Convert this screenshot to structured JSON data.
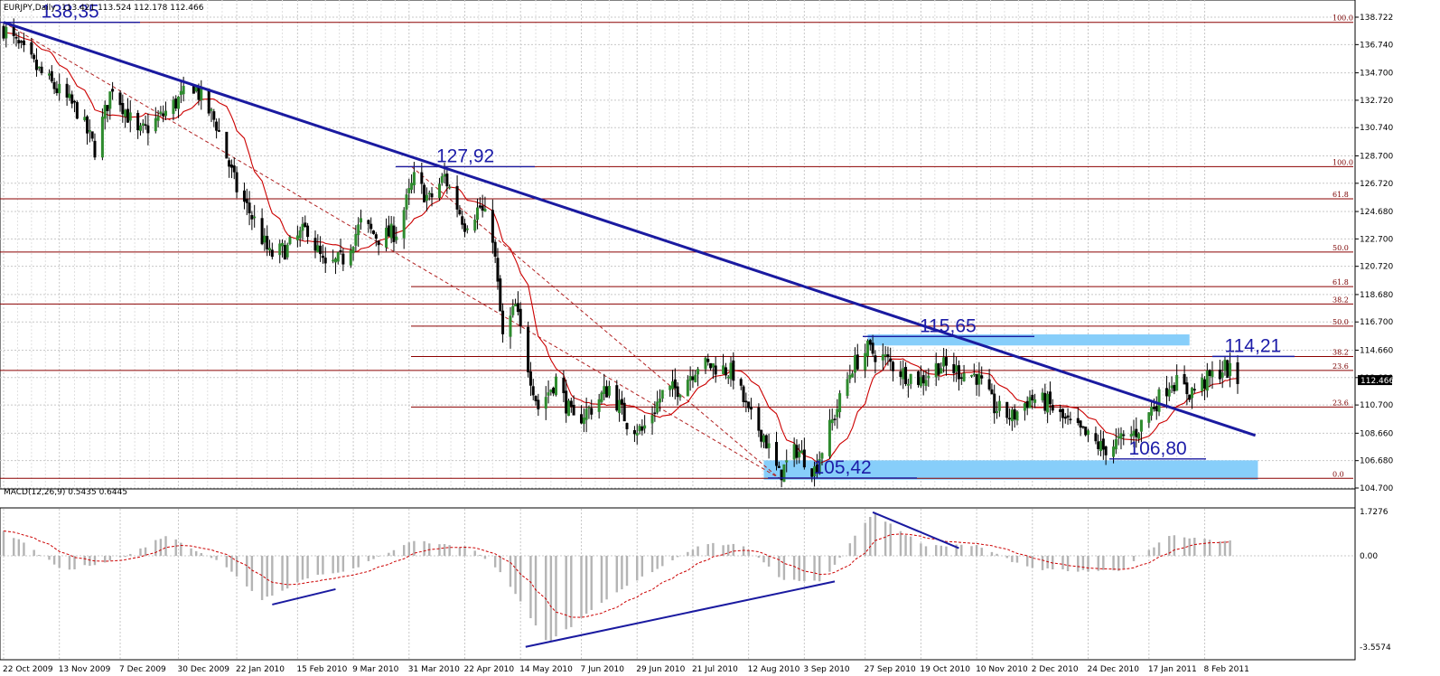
{
  "chart_data": {
    "type": "candlestick",
    "symbol_label": "EURJPY,Daily",
    "ohlc_label": "113.421 113.524 112.178 112.466",
    "current_price": "112.466",
    "price_axis": {
      "min": 104.7,
      "max": 138.722,
      "ticks": [
        "138.722",
        "136.740",
        "134.700",
        "132.720",
        "130.740",
        "128.700",
        "126.720",
        "124.680",
        "122.700",
        "120.720",
        "118.680",
        "116.700",
        "114.660",
        "112.680",
        "110.700",
        "108.660",
        "106.680",
        "104.700"
      ]
    },
    "date_ticks": [
      "22 Oct 2009",
      "13 Nov 2009",
      "7 Dec 2009",
      "30 Dec 2009",
      "22 Jan 2010",
      "15 Feb 2010",
      "9 Mar 2010",
      "31 Mar 2010",
      "22 Apr 2010",
      "14 May 2010",
      "7 Jun 2010",
      "29 Jun 2010",
      "21 Jul 2010",
      "12 Aug 2010",
      "3 Sep 2010",
      "27 Sep 2010",
      "19 Oct 2010",
      "10 Nov 2010",
      "2 Dec 2010",
      "24 Dec 2010",
      "17 Jan 2011",
      "8 Feb 2011"
    ],
    "price_anchors": [
      [
        "2009-10-22",
        137.9
      ],
      [
        "2009-11-05",
        134.8
      ],
      [
        "2009-11-20",
        132.0
      ],
      [
        "2009-11-27",
        129.2
      ],
      [
        "2009-12-04",
        133.8
      ],
      [
        "2009-12-14",
        130.2
      ],
      [
        "2009-12-23",
        131.5
      ],
      [
        "2010-01-05",
        133.8
      ],
      [
        "2010-01-14",
        131.0
      ],
      [
        "2010-01-22",
        126.3
      ],
      [
        "2010-01-29",
        124.0
      ],
      [
        "2010-02-04",
        121.5
      ],
      [
        "2010-02-11",
        122.0
      ],
      [
        "2010-02-19",
        123.5
      ],
      [
        "2010-02-26",
        120.5
      ],
      [
        "2010-03-05",
        121.3
      ],
      [
        "2010-03-12",
        123.8
      ],
      [
        "2010-03-19",
        122.8
      ],
      [
        "2010-03-26",
        123.2
      ],
      [
        "2010-04-02",
        127.0
      ],
      [
        "2010-04-08",
        125.5
      ],
      [
        "2010-04-14",
        127.2
      ],
      [
        "2010-04-22",
        123.8
      ],
      [
        "2010-04-28",
        125.0
      ],
      [
        "2010-05-03",
        123.0
      ],
      [
        "2010-05-07",
        115.5
      ],
      [
        "2010-05-12",
        117.8
      ],
      [
        "2010-05-17",
        113.5
      ],
      [
        "2010-05-21",
        110.5
      ],
      [
        "2010-05-28",
        112.5
      ],
      [
        "2010-06-04",
        109.5
      ],
      [
        "2010-06-11",
        110.5
      ],
      [
        "2010-06-18",
        112.0
      ],
      [
        "2010-06-25",
        109.5
      ],
      [
        "2010-07-01",
        108.8
      ],
      [
        "2010-07-09",
        111.5
      ],
      [
        "2010-07-16",
        112.0
      ],
      [
        "2010-07-23",
        113.6
      ],
      [
        "2010-07-30",
        113.5
      ],
      [
        "2010-08-06",
        113.0
      ],
      [
        "2010-08-12",
        110.0
      ],
      [
        "2010-08-18",
        108.5
      ],
      [
        "2010-08-24",
        105.6
      ],
      [
        "2010-08-31",
        107.5
      ],
      [
        "2010-09-07",
        106.0
      ],
      [
        "2010-09-15",
        110.0
      ],
      [
        "2010-09-22",
        113.5
      ],
      [
        "2010-09-28",
        114.7
      ],
      [
        "2010-10-05",
        114.0
      ],
      [
        "2010-10-12",
        113.0
      ],
      [
        "2010-10-19",
        112.5
      ],
      [
        "2010-10-26",
        113.6
      ],
      [
        "2010-11-02",
        113.2
      ],
      [
        "2010-11-10",
        112.8
      ],
      [
        "2010-11-17",
        110.5
      ],
      [
        "2010-11-24",
        109.8
      ],
      [
        "2010-12-01",
        111.2
      ],
      [
        "2010-12-08",
        110.8
      ],
      [
        "2010-12-15",
        109.5
      ],
      [
        "2010-12-22",
        108.6
      ],
      [
        "2010-12-30",
        107.5
      ],
      [
        "2011-01-05",
        108.0
      ],
      [
        "2011-01-12",
        108.8
      ],
      [
        "2011-01-19",
        110.7
      ],
      [
        "2011-01-26",
        112.5
      ],
      [
        "2011-02-02",
        111.6
      ],
      [
        "2011-02-09",
        112.5
      ],
      [
        "2011-02-16",
        113.4
      ],
      [
        "2011-02-21",
        112.47
      ]
    ],
    "moving_average": "solid red",
    "fib_labels": [
      {
        "text": "100.0",
        "price": 138.35
      },
      {
        "text": "100.0",
        "price": 127.92
      },
      {
        "text": "61.8",
        "price": 125.6
      },
      {
        "text": "50.0",
        "price": 121.75
      },
      {
        "text": "61.8",
        "price": 119.25
      },
      {
        "text": "38.2",
        "price": 118.0
      },
      {
        "text": "50.0",
        "price": 116.4
      },
      {
        "text": "38.2",
        "price": 114.2
      },
      {
        "text": "23.6",
        "price": 113.2
      },
      {
        "text": "23.6",
        "price": 110.55
      },
      {
        "text": "0.0",
        "price": 105.4
      }
    ],
    "level_labels": [
      {
        "text": "138,35",
        "date": "2009-11-10",
        "price": 138.35
      },
      {
        "text": "127,92",
        "date": "2010-04-10",
        "price": 127.92
      },
      {
        "text": "115,65",
        "date": "2010-10-23",
        "price": 115.65
      },
      {
        "text": "114,21",
        "date": "2011-02-08",
        "price": 114.21
      },
      {
        "text": "106,80",
        "date": "2011-01-05",
        "price": 106.8
      },
      {
        "text": "105,42",
        "date": "2010-09-08",
        "price": 105.42
      }
    ],
    "trendline": {
      "from": [
        "2009-10-22",
        138.35
      ],
      "to": [
        "2011-02-28",
        108.5
      ]
    },
    "zones": [
      {
        "from": "2010-09-28",
        "to": "2011-02-02",
        "low": 115.0,
        "high": 115.8
      },
      {
        "from": "2010-08-18",
        "to": "2011-03-01",
        "low": 105.3,
        "high": 106.7
      }
    ],
    "macd": {
      "label": "MACD(12,26,9) 0.5435 0.6445",
      "ticks": [
        "1.7276",
        "0.00",
        "-3.5574"
      ],
      "min": -3.5574,
      "max": 1.7276,
      "anchors": [
        [
          "2009-10-22",
          1.0
        ],
        [
          "2009-11-15",
          -0.6
        ],
        [
          "2009-12-10",
          0.0
        ],
        [
          "2009-12-25",
          0.8
        ],
        [
          "2010-01-15",
          -0.2
        ],
        [
          "2010-02-01",
          -1.7
        ],
        [
          "2010-02-20",
          -0.8
        ],
        [
          "2010-03-10",
          -0.5
        ],
        [
          "2010-04-01",
          0.6
        ],
        [
          "2010-04-25",
          0.3
        ],
        [
          "2010-05-05",
          -0.5
        ],
        [
          "2010-05-25",
          -3.4
        ],
        [
          "2010-06-20",
          -1.5
        ],
        [
          "2010-07-05",
          -0.6
        ],
        [
          "2010-07-25",
          0.5
        ],
        [
          "2010-08-10",
          0.4
        ],
        [
          "2010-08-25",
          -0.9
        ],
        [
          "2010-09-10",
          -1.0
        ],
        [
          "2010-09-30",
          1.7
        ],
        [
          "2010-10-20",
          0.4
        ],
        [
          "2010-11-10",
          0.4
        ],
        [
          "2010-12-01",
          -0.5
        ],
        [
          "2010-12-20",
          -0.6
        ],
        [
          "2011-01-05",
          -0.6
        ],
        [
          "2011-01-25",
          0.8
        ],
        [
          "2011-02-21",
          0.54
        ]
      ],
      "signal_color": "red dashed",
      "divergence_lines": [
        {
          "from": [
            "2010-02-05",
            -1.9
          ],
          "to": [
            "2010-03-02",
            -1.3
          ]
        },
        {
          "from": [
            "2010-05-16",
            -3.55
          ],
          "to": [
            "2010-09-15",
            -1.0
          ]
        },
        {
          "from": [
            "2010-09-30",
            1.7
          ],
          "to": [
            "2010-11-03",
            0.3
          ]
        }
      ]
    }
  }
}
